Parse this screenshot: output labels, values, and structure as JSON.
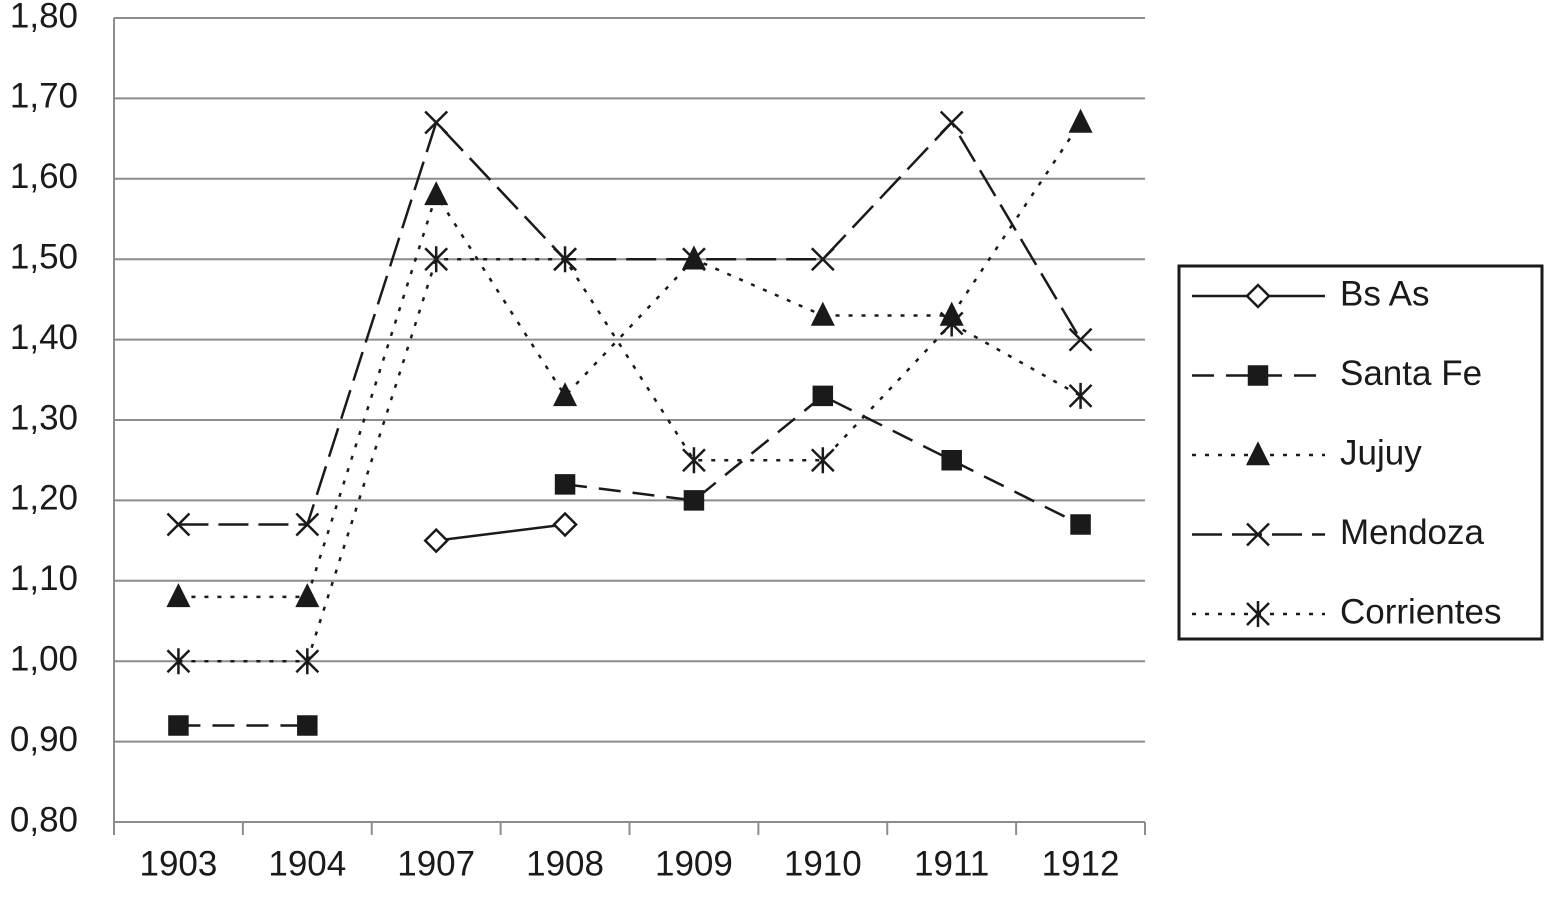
{
  "chart_data": {
    "type": "line",
    "categories": [
      "1903",
      "1904",
      "1907",
      "1908",
      "1909",
      "1910",
      "1911",
      "1912"
    ],
    "series": [
      {
        "name": "Bs As",
        "color": "#1a1a1a",
        "dash": "solid",
        "marker": "diamond",
        "values": [
          null,
          null,
          1.15,
          1.17,
          null,
          null,
          null,
          null
        ]
      },
      {
        "name": "Santa Fe",
        "color": "#1a1a1a",
        "dash": "dash",
        "marker": "square",
        "values": [
          0.92,
          0.92,
          null,
          1.22,
          1.2,
          1.33,
          1.25,
          1.17
        ]
      },
      {
        "name": "Jujuy",
        "color": "#1a1a1a",
        "dash": "dot",
        "marker": "triangle",
        "values": [
          1.08,
          1.08,
          1.58,
          1.33,
          1.5,
          1.43,
          1.43,
          1.67
        ]
      },
      {
        "name": "Mendoza",
        "color": "#1a1a1a",
        "dash": "longdash",
        "marker": "x",
        "values": [
          1.17,
          1.17,
          1.67,
          1.5,
          1.5,
          1.5,
          1.67,
          1.4
        ]
      },
      {
        "name": "Corrientes",
        "color": "#1a1a1a",
        "dash": "dot",
        "marker": "star",
        "values": [
          1.0,
          1.0,
          1.5,
          1.5,
          1.25,
          1.25,
          1.42,
          1.33
        ]
      }
    ],
    "ylim": [
      0.8,
      1.8
    ],
    "yticks": [
      {
        "value": 0.8,
        "label": "0,80"
      },
      {
        "value": 0.9,
        "label": "0,90"
      },
      {
        "value": 1.0,
        "label": "1,00"
      },
      {
        "value": 1.1,
        "label": "1,10"
      },
      {
        "value": 1.2,
        "label": "1,20"
      },
      {
        "value": 1.3,
        "label": "1,30"
      },
      {
        "value": 1.4,
        "label": "1,40"
      },
      {
        "value": 1.5,
        "label": "1,50"
      },
      {
        "value": 1.6,
        "label": "1,60"
      },
      {
        "value": 1.7,
        "label": "1,70"
      },
      {
        "value": 1.8,
        "label": "1,80"
      }
    ],
    "grid": true,
    "legend": "right"
  }
}
